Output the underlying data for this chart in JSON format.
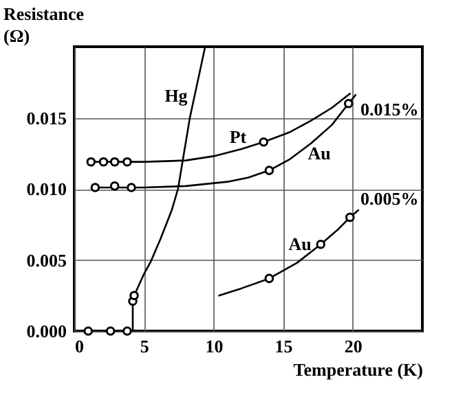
{
  "chart_data": {
    "type": "line",
    "xlabel": "Temperature (K)",
    "ylabel": "Resistance (Ω)",
    "xlim": [
      0,
      25
    ],
    "xticks": [
      0,
      5,
      10,
      15,
      20
    ],
    "ylim": [
      0,
      0.02
    ],
    "yticks": [
      {
        "value": 0,
        "label": "0.000"
      },
      0.005,
      {
        "value": 0.01,
        "label": "0.010"
      },
      0.015
    ],
    "grid": true,
    "line_style": "solid",
    "series": [
      {
        "color": "#000000",
        "x": [
          0.8,
          4.2,
          4.2,
          4.3,
          5,
          5.5,
          6.2,
          7,
          7.45,
          8.3,
          9.4
        ],
        "values": [
          0,
          0,
          0.0021,
          0.0025,
          0.004,
          0.0049,
          0.0065,
          0.0085,
          0.01,
          0.015,
          0.02
        ]
      },
      {
        "color": "#000000",
        "x": [
          1.2,
          5,
          8,
          10,
          12,
          13.6,
          15.5,
          17,
          18.5,
          19.8
        ],
        "values": [
          0.0119,
          0.0119,
          0.012,
          0.0123,
          0.0128,
          0.0133,
          0.014,
          0.0148,
          0.0157,
          0.0167
        ]
      },
      {
        "color": "#000000",
        "x": [
          1.5,
          5,
          8,
          11,
          12.5,
          14,
          15.5,
          17,
          18.5,
          19.7,
          20.2
        ],
        "values": [
          0.0101,
          0.0101,
          0.0102,
          0.0105,
          0.0108,
          0.0113,
          0.0121,
          0.0132,
          0.0145,
          0.016,
          0.0166
        ]
      },
      {
        "color": "#000000",
        "x": [
          10.4,
          12,
          14,
          16,
          17.7,
          19,
          19.8,
          20.4
        ],
        "values": [
          0.0025,
          0.003,
          0.0037,
          0.0048,
          0.0061,
          0.0072,
          0.008,
          0.0085
        ]
      },
      {
        "type": "scatter",
        "marker": "circle",
        "color": "#000000",
        "x": [
          1.0,
          2.6,
          3.8,
          4.2,
          4.3
        ],
        "values": [
          0,
          0,
          0,
          0.0021,
          0.0025
        ]
      },
      {
        "type": "scatter",
        "marker": "circle",
        "color": "#000000",
        "x": [
          1.2,
          2.1,
          2.9,
          3.8,
          13.6
        ],
        "values": [
          0.0119,
          0.0119,
          0.0119,
          0.0119,
          0.0133
        ]
      },
      {
        "type": "scatter",
        "marker": "circle",
        "color": "#000000",
        "x": [
          1.5,
          2.9,
          4.1,
          14.0,
          19.7
        ],
        "values": [
          0.0101,
          0.0102,
          0.0101,
          0.0113,
          0.016
        ]
      },
      {
        "type": "scatter",
        "marker": "circle",
        "color": "#000000",
        "x": [
          14.0,
          17.7,
          19.8
        ],
        "values": [
          0.0037,
          0.0061,
          0.008
        ]
      }
    ],
    "annotations": [
      "Hg",
      "Pt",
      "Au",
      "0.015%",
      "Au",
      "0.005%"
    ]
  }
}
